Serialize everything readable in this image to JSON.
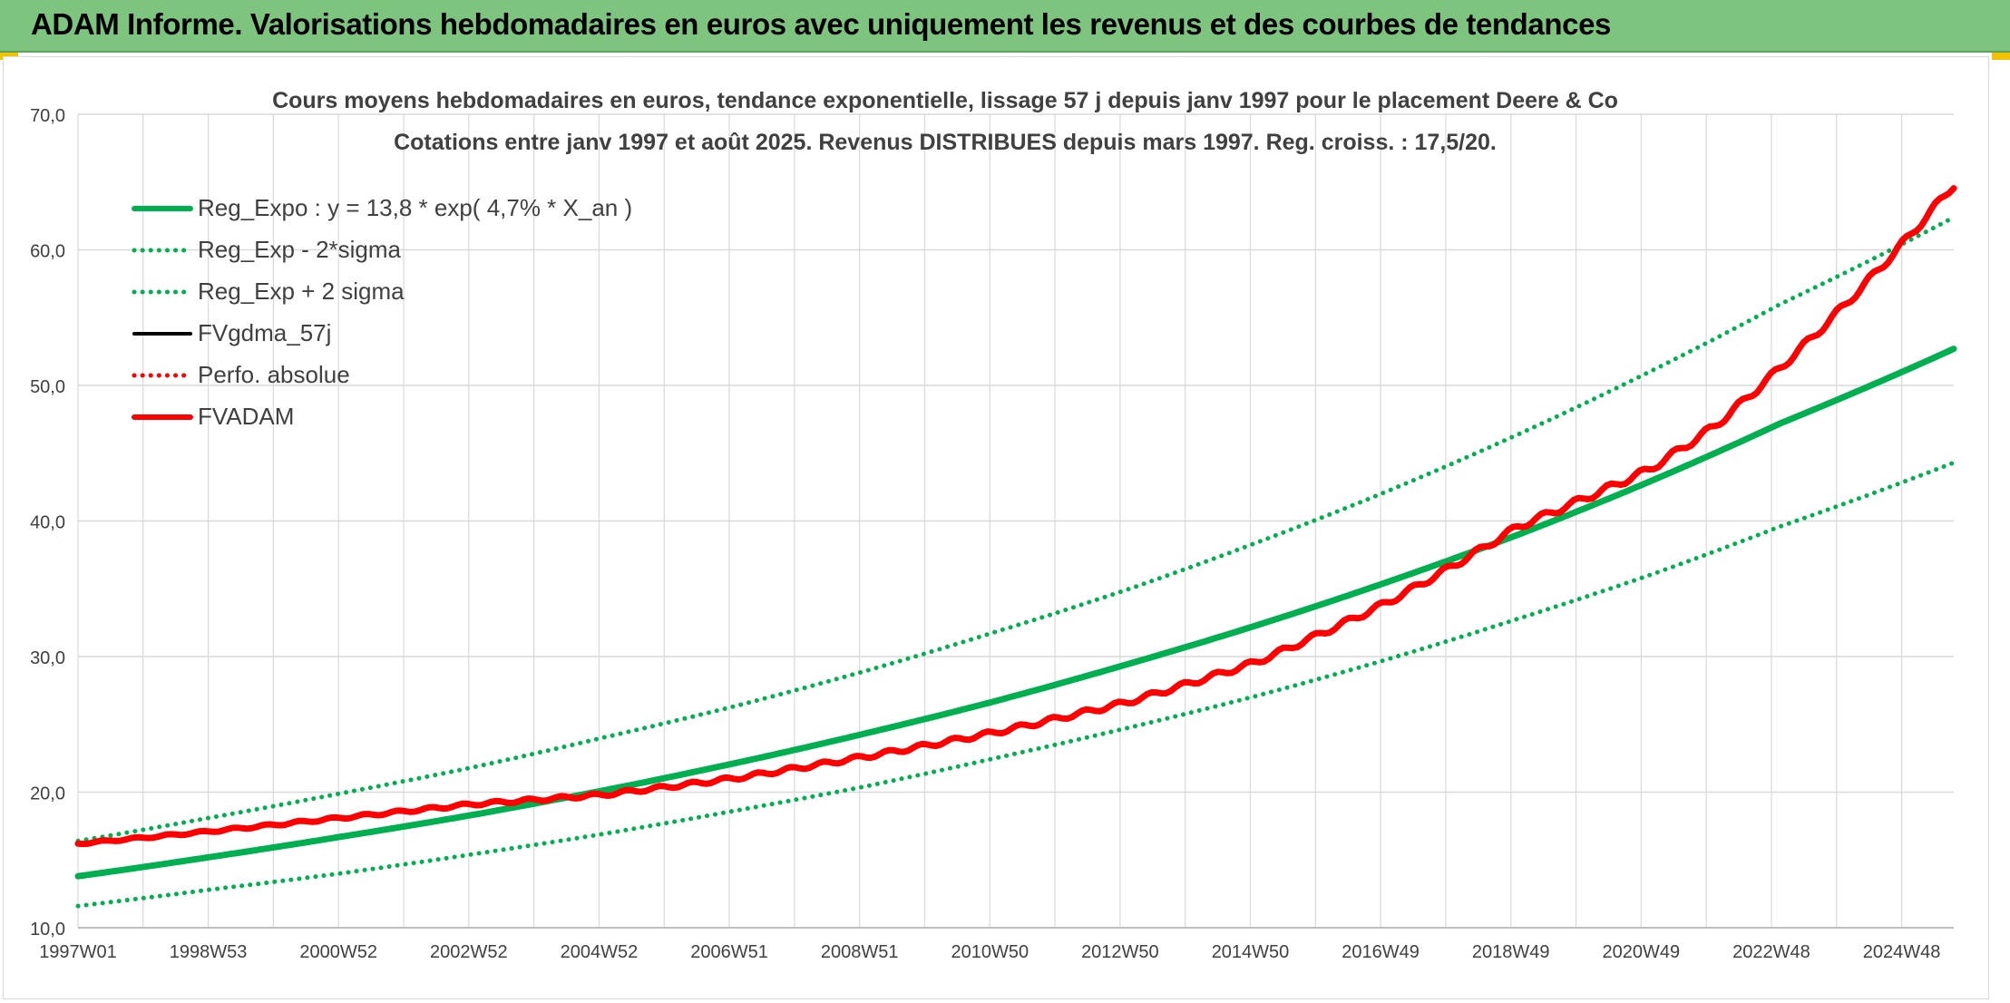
{
  "banner": {
    "title": "ADAM Informe. Valorisations hebdomadaires en euros avec uniquement les revenus et des courbes de tendances"
  },
  "colors": {
    "banner_bg": "#7dc57f",
    "reg_green": "#00b050",
    "fvadam_red": "#ff0000",
    "perfo_red": "#ff0000",
    "fvgdma_black": "#000000",
    "grid": "#d9d9d9",
    "text": "#404040"
  },
  "chart_data": {
    "type": "line",
    "title_line1": "Cours moyens hebdomadaires en euros, tendance exponentielle, lissage 57 j depuis janv 1997 pour le placement Deere & Co",
    "title_line2": "Cotations entre janv 1997 et août 2025. Revenus DISTRIBUES depuis mars 1997. Reg. croiss. : 17,5/20.",
    "xlabel": "",
    "ylabel": "",
    "ylim": [
      10,
      70
    ],
    "yticks": [
      "10,0",
      "20,0",
      "30,0",
      "40,0",
      "50,0",
      "60,0",
      "70,0"
    ],
    "xlim": [
      1997.0,
      2025.65
    ],
    "xtick_labels": [
      "1997W01",
      "1998W53",
      "2000W52",
      "2002W52",
      "2004W52",
      "2006W51",
      "2008W51",
      "2010W50",
      "2012W50",
      "2014W50",
      "2016W49",
      "2018W49",
      "2020W49",
      "2022W48",
      "2024W48"
    ],
    "grid": true,
    "legend_position": "top-left",
    "series": [
      {
        "name": "Reg_Expo : y = 13,8 * exp( 4,7% *  X_an )",
        "style": "solid-thick",
        "color": "#00b050",
        "x": [
          1997,
          1999,
          2001,
          2003,
          2005,
          2007,
          2009,
          2011,
          2013,
          2015,
          2017,
          2019,
          2021,
          2023,
          2025.65
        ],
        "values": [
          13.8,
          15.2,
          16.7,
          18.3,
          20.1,
          22.1,
          24.3,
          26.7,
          29.4,
          32.3,
          35.5,
          39.0,
          42.9,
          47.2,
          52.7
        ]
      },
      {
        "name": "Reg_Exp - 2*sigma",
        "style": "dotted",
        "color": "#00b050",
        "x": [
          1997,
          1999,
          2001,
          2003,
          2005,
          2007,
          2009,
          2011,
          2013,
          2015,
          2017,
          2019,
          2021,
          2023,
          2025.65
        ],
        "values": [
          11.6,
          12.8,
          14.0,
          15.4,
          16.9,
          18.6,
          20.4,
          22.5,
          24.7,
          27.1,
          29.8,
          32.8,
          36.0,
          39.6,
          44.3
        ]
      },
      {
        "name": "Reg_Exp + 2 sigma",
        "style": "dotted",
        "color": "#00b050",
        "x": [
          1997,
          1999,
          2001,
          2003,
          2005,
          2007,
          2009,
          2011,
          2013,
          2015,
          2017,
          2019,
          2021,
          2023,
          2025.65
        ],
        "values": [
          16.4,
          18.1,
          19.9,
          21.8,
          24.0,
          26.3,
          28.9,
          31.8,
          34.9,
          38.4,
          42.2,
          46.4,
          51.0,
          56.0,
          62.4
        ]
      },
      {
        "name": "FVgdma_57j",
        "style": "solid",
        "color": "#000000",
        "x": [
          1997,
          1999,
          2001,
          2003,
          2005,
          2007,
          2009,
          2011,
          2013,
          2015,
          2017,
          2019,
          2021,
          2022,
          2023,
          2024,
          2025.65
        ],
        "values": [
          16.2,
          17.1,
          18.1,
          19.1,
          19.8,
          21.0,
          22.6,
          24.4,
          26.6,
          29.6,
          34.0,
          39.6,
          43.8,
          47.0,
          51.3,
          56.0,
          64.8
        ]
      },
      {
        "name": "Perfo. absolue",
        "style": "dotted",
        "color": "#ff0000",
        "x": [
          1997,
          1999,
          2001,
          2003,
          2005,
          2007,
          2009,
          2011,
          2013,
          2015,
          2017,
          2019,
          2021,
          2022,
          2023,
          2024,
          2025.65
        ],
        "values": [
          16.2,
          17.1,
          18.1,
          19.1,
          19.8,
          21.0,
          22.6,
          24.4,
          26.6,
          29.6,
          34.0,
          39.6,
          43.8,
          47.0,
          51.3,
          56.0,
          64.8
        ]
      },
      {
        "name": "FVADAM",
        "style": "solid-thick",
        "color": "#ff0000",
        "x": [
          1997,
          1999,
          2001,
          2003,
          2005,
          2007,
          2009,
          2011,
          2013,
          2015,
          2017,
          2019,
          2021,
          2022,
          2023,
          2024,
          2025.65
        ],
        "values": [
          16.2,
          17.1,
          18.1,
          19.1,
          19.8,
          21.0,
          22.6,
          24.4,
          26.6,
          29.6,
          34.0,
          39.6,
          43.8,
          47.0,
          51.3,
          56.0,
          64.8
        ]
      }
    ]
  }
}
